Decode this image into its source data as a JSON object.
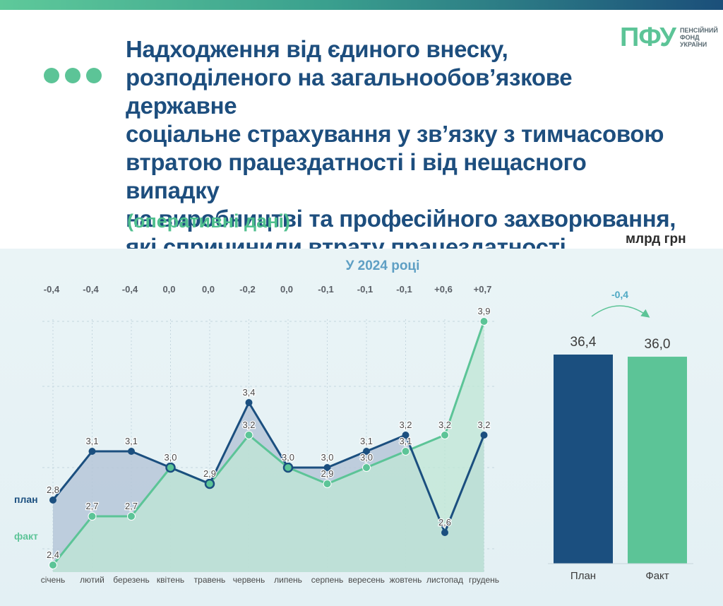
{
  "header": {
    "title": "Надходження від єдиного внеску,\nрозподіленого на загальнообов’язкове державне\nсоціальне страхування у зв’язку з тимчасовою\nвтратою працездатності і від нещасного випадку\nна виробництві та професійного захворювання,\nякі спричинили втрату працездатності",
    "subtitle": "(оперативні дані)",
    "unit": "млрд грн"
  },
  "logo": {
    "mark": "ПФУ",
    "text": "ПЕНСІЙНИЙ\nФОНД\nУКРАЇНИ"
  },
  "colors": {
    "plan": "#1b4f7f",
    "fact": "#5cc497",
    "accent": "#5cc497",
    "title": "#1d4e7e"
  },
  "chart_data": [
    {
      "type": "line",
      "title": "У 2024 році",
      "categories": [
        "січень",
        "лютий",
        "березень",
        "квітень",
        "травень",
        "червень",
        "липень",
        "серпень",
        "вересень",
        "жовтень",
        "листопад",
        "грудень"
      ],
      "series": [
        {
          "name": "план",
          "values": [
            2.8,
            3.1,
            3.1,
            3.0,
            2.9,
            3.4,
            3.0,
            3.0,
            3.1,
            3.2,
            2.6,
            3.2
          ],
          "labels": [
            "2,8",
            "3,1",
            "3,1",
            "3,0",
            "2,9",
            "3,4",
            "3,0",
            "3,0",
            "3,1",
            "3,2",
            "2,6",
            "3,2"
          ]
        },
        {
          "name": "факт",
          "values": [
            2.4,
            2.7,
            2.7,
            3.0,
            2.9,
            3.2,
            3.0,
            2.9,
            3.0,
            3.1,
            3.2,
            3.9
          ],
          "labels": [
            "2,4",
            "2,7",
            "2,7",
            "3,0",
            "2,9",
            "3,2",
            "3,0",
            "2,9",
            "3,0",
            "3,1",
            "3,2",
            "3,9"
          ]
        }
      ],
      "differences": [
        "-0,4",
        "-0,4",
        "-0,4",
        "0,0",
        "0,0",
        "-0,2",
        "0,0",
        "-0,1",
        "-0,1",
        "-0,1",
        "+0,6",
        "+0,7"
      ],
      "ylim": [
        2.4,
        3.9
      ],
      "grid": true
    },
    {
      "type": "bar",
      "categories": [
        "План",
        "Факт"
      ],
      "values": [
        36.4,
        36.0
      ],
      "value_labels": [
        "36,4",
        "36,0"
      ],
      "difference": "-0,4"
    }
  ]
}
